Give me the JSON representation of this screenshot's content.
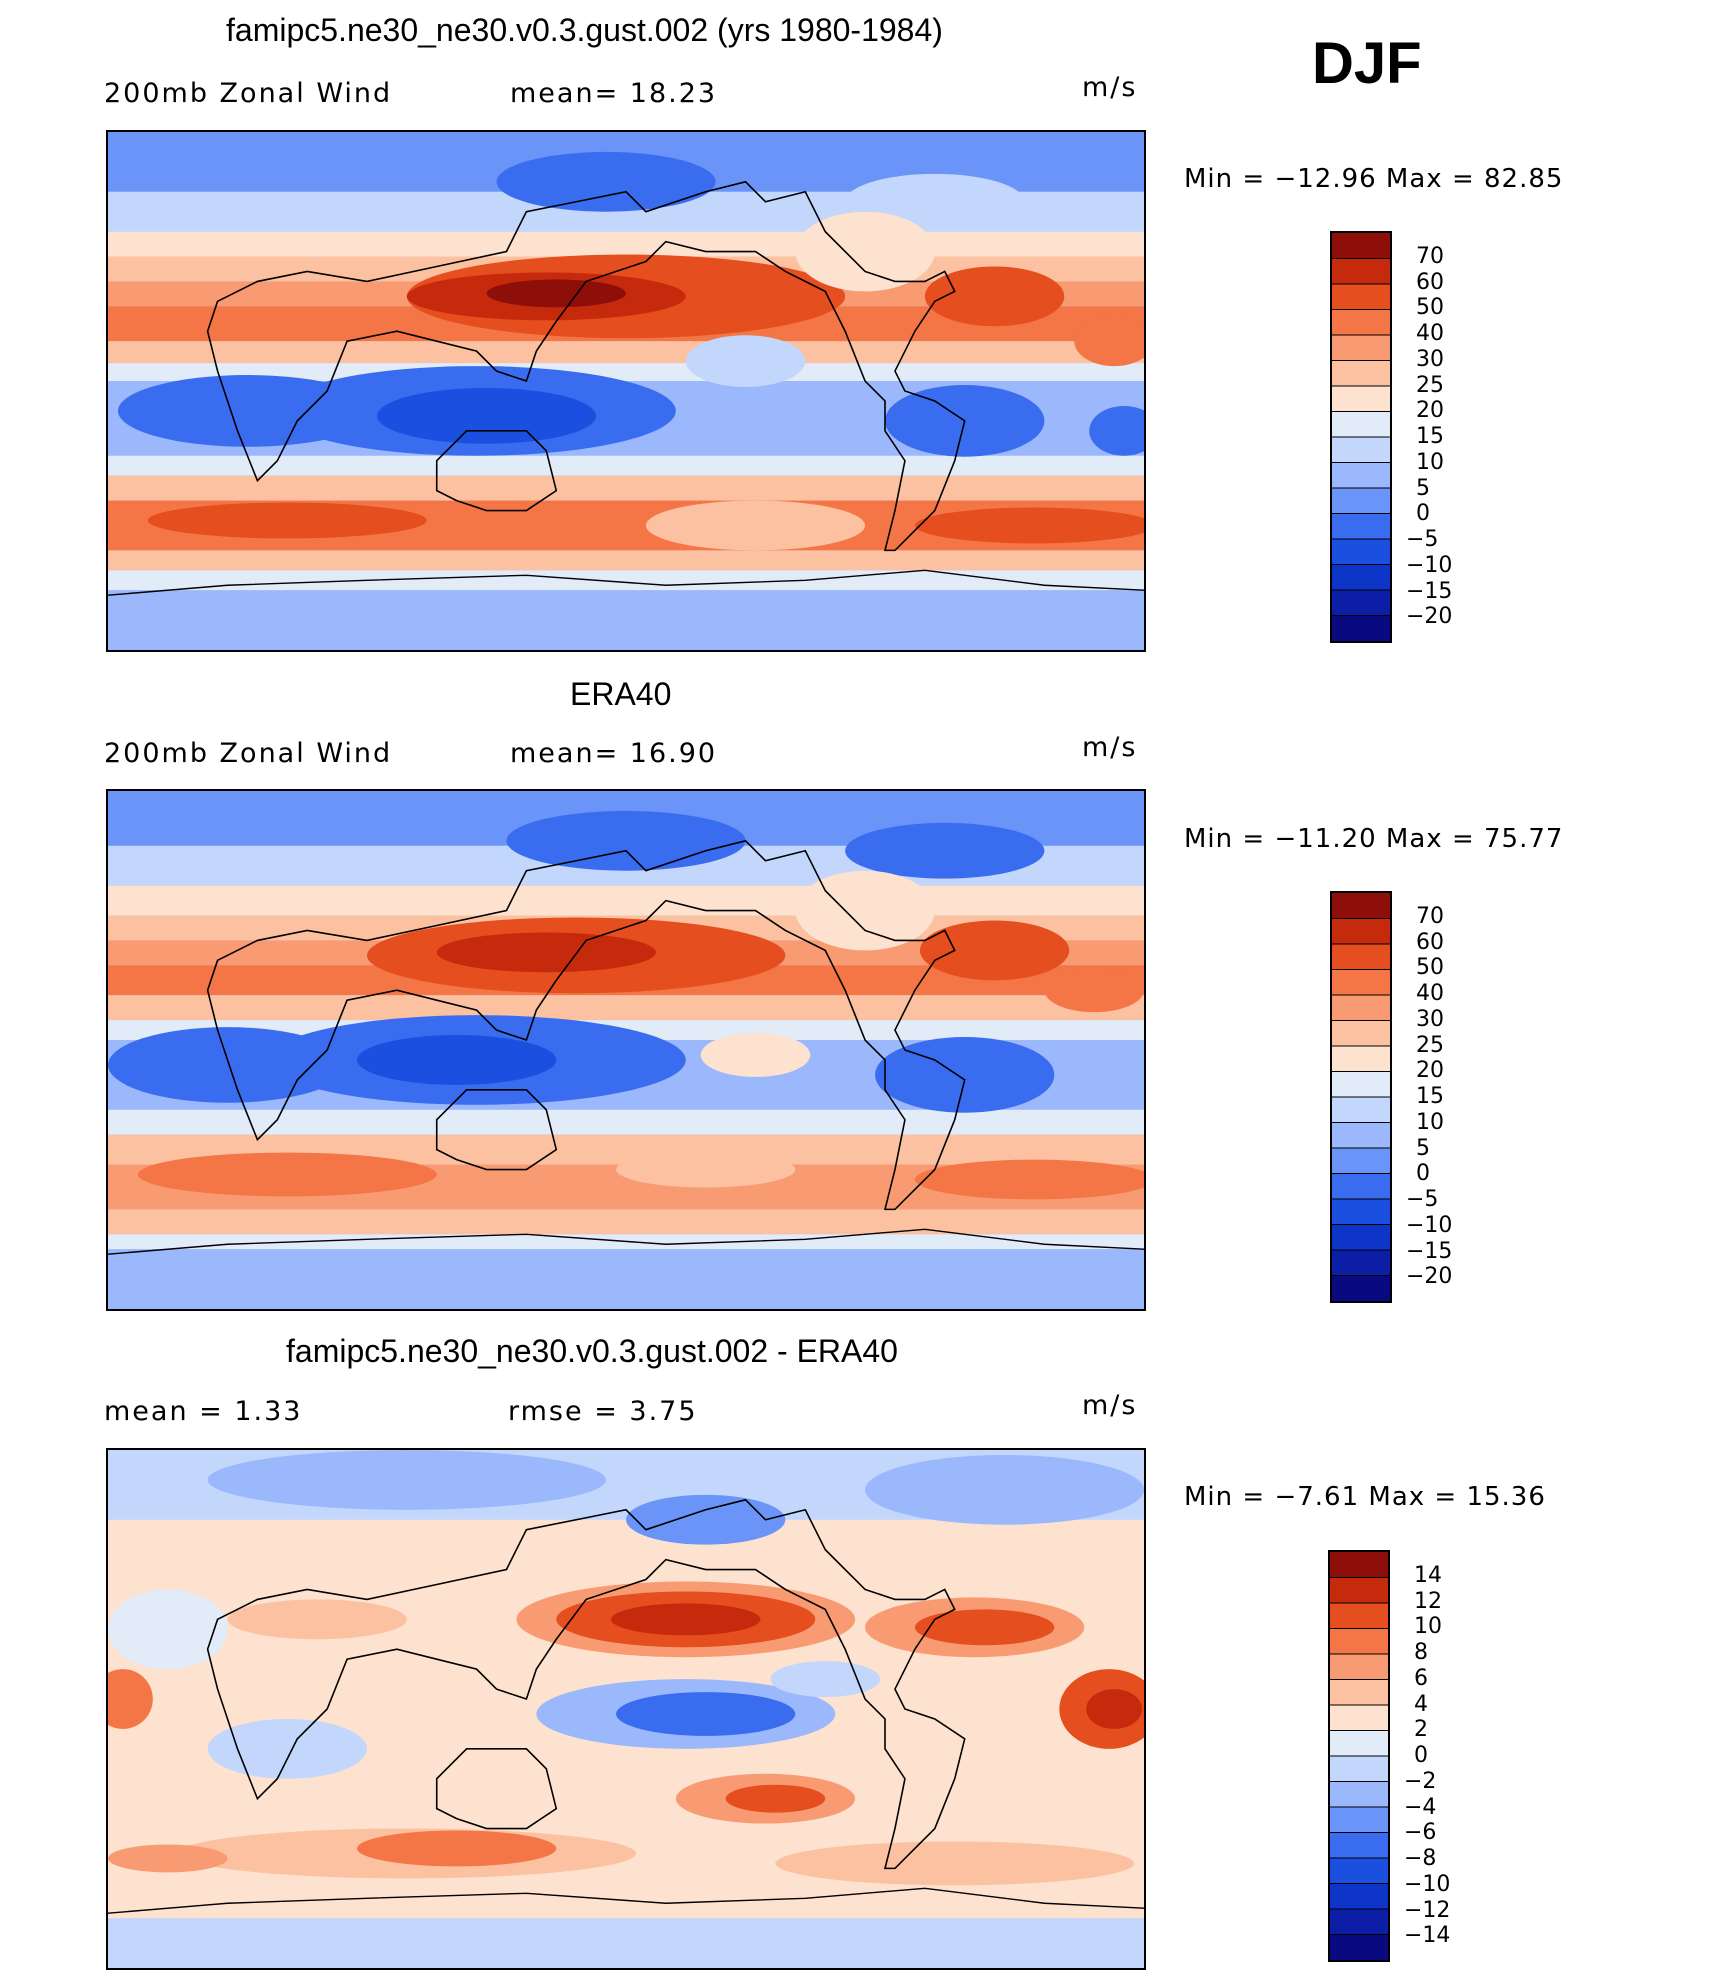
{
  "season": "DJF",
  "colors": {
    "ramp_top": [
      "#0a0a80",
      "#0c1ea5",
      "#0d35c8",
      "#1a4fe0",
      "#3a6cf0",
      "#6b94f8",
      "#9ab8fb",
      "#c3d6fb",
      "#e2ebf8",
      "#fde2cf",
      "#fbc1a0",
      "#f99b72",
      "#f47545",
      "#e54e1e",
      "#c52a0d",
      "#8e0f0a"
    ],
    "ramp_diff": [
      "#0a0a80",
      "#0c1ea5",
      "#0d35c8",
      "#1a4fe0",
      "#3a6cf0",
      "#6b94f8",
      "#9ab8fb",
      "#c3d6fb",
      "#e2ebf8",
      "#fde2cf",
      "#fbc1a0",
      "#f99b72",
      "#f47545",
      "#e54e1e",
      "#c52a0d",
      "#8e0f0a"
    ]
  },
  "panels": [
    {
      "title": "famipc5.ne30_ne30.v0.3.gust.002 (yrs 1980-1984)",
      "left_label": "200mb  Zonal  Wind",
      "mid_label": "mean=   18.23",
      "units": "m/s",
      "minmax": "Min  =  −12.96  Max  =    82.85",
      "levels": [
        "70",
        "60",
        "50",
        "40",
        "30",
        "25",
        "20",
        "15",
        "10",
        "5",
        "0",
        "−5",
        "−10",
        "−15",
        "−20"
      ]
    },
    {
      "title": "ERA40",
      "left_label": "200mb  Zonal  Wind",
      "mid_label": "mean=   16.90",
      "units": "m/s",
      "minmax": "Min  =  −11.20  Max  =    75.77",
      "levels": [
        "70",
        "60",
        "50",
        "40",
        "30",
        "25",
        "20",
        "15",
        "10",
        "5",
        "0",
        "−5",
        "−10",
        "−15",
        "−20"
      ]
    },
    {
      "title": "famipc5.ne30_ne30.v0.3.gust.002 - ERA40",
      "left_label": "mean  =     1.33",
      "mid_label": "rmse  =     3.75",
      "units": "m/s",
      "minmax": "Min  =    −7.61  Max  =    15.36",
      "levels": [
        "14",
        "12",
        "10",
        "8",
        "6",
        "4",
        "2",
        "0",
        "−2",
        "−4",
        "−6",
        "−8",
        "−10",
        "−12",
        "−14"
      ]
    }
  ]
}
